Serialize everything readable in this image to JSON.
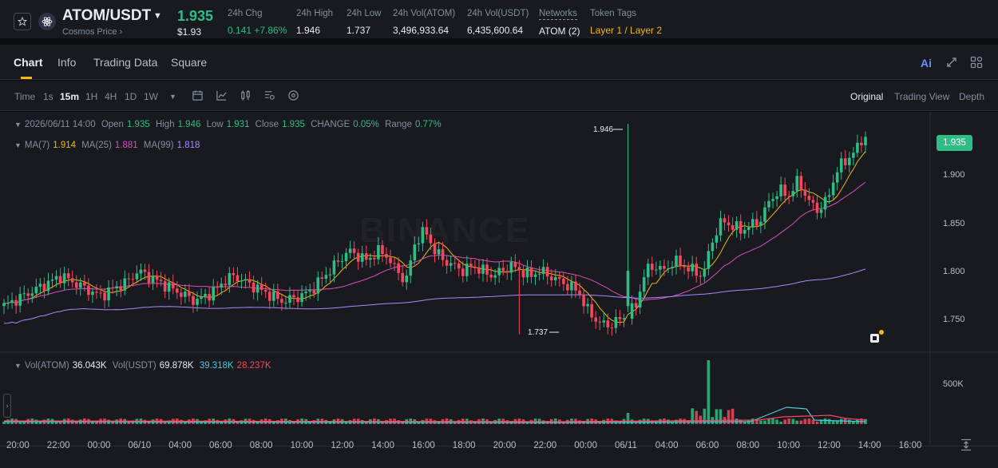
{
  "ticker": {
    "pair": "ATOM/USDT",
    "sub": "Cosmos Price",
    "price": "1.935",
    "price_usd": "$1.93",
    "stats": [
      {
        "label": "24h Chg",
        "value": "0.141 +7.86%",
        "color": "green"
      },
      {
        "label": "24h High",
        "value": "1.946"
      },
      {
        "label": "24h Low",
        "value": "1.737"
      },
      {
        "label": "24h Vol(ATOM)",
        "value": "3,496,933.64"
      },
      {
        "label": "24h Vol(USDT)",
        "value": "6,435,600.64"
      },
      {
        "label": "Networks",
        "value": "ATOM (2)"
      },
      {
        "label": "Token Tags",
        "value": "Layer 1 / Layer 2",
        "color": "yellow"
      }
    ]
  },
  "tabs": [
    "Chart",
    "Info",
    "Trading Data",
    "Square"
  ],
  "ai_label": "Ai",
  "toolbar": {
    "timeframes": [
      "Time",
      "1s",
      "15m",
      "1H",
      "4H",
      "1D",
      "1W"
    ],
    "active_timeframe": "15m",
    "views": [
      "Original",
      "Trading View",
      "Depth"
    ],
    "active_view": "Original"
  },
  "ohlc": {
    "date": "2026/06/11 14:00",
    "open_label": "Open",
    "open": "1.935",
    "high_label": "High",
    "high": "1.946",
    "low_label": "Low",
    "low": "1.931",
    "close_label": "Close",
    "close": "1.935",
    "change_label": "CHANGE",
    "change": "0.05%",
    "range_label": "Range",
    "range": "0.77%"
  },
  "ma": {
    "ma7_label": "MA(7)",
    "ma7": "1.914",
    "ma25_label": "MA(25)",
    "ma25": "1.881",
    "ma99_label": "MA(99)",
    "ma99": "1.818"
  },
  "volume": {
    "atom_label": "Vol(ATOM)",
    "atom": "36.043K",
    "usdt_label": "Vol(USDT)",
    "usdt": "69.878K",
    "ma1": "39.318K",
    "ma2": "28.237K"
  },
  "watermark": "BINANCE",
  "colors": {
    "up": "#2ebd85",
    "down": "#f6465d",
    "ma7": "#f0b90b",
    "ma25": "#d94fb9",
    "ma99": "#a989ff",
    "accent": "#f0b90b"
  },
  "chart_data": {
    "type": "candlestick",
    "price_axis_ticks": [
      "1.935",
      "1.900",
      "1.850",
      "1.800",
      "1.750"
    ],
    "volume_axis_ticks": [
      "500K"
    ],
    "time_ticks": [
      "20:00",
      "22:00",
      "00:00",
      "06/10",
      "04:00",
      "06:00",
      "08:00",
      "10:00",
      "12:00",
      "14:00",
      "16:00",
      "18:00",
      "20:00",
      "22:00",
      "00:00",
      "06/11",
      "04:00",
      "06:00",
      "08:00",
      "10:00",
      "12:00",
      "14:00",
      "16:00"
    ],
    "high_marker": "1.946",
    "low_marker": "1.737",
    "last_price": "1.935",
    "ylim": [
      1.72,
      1.95
    ],
    "close_path": [
      1.765,
      1.77,
      1.775,
      1.78,
      1.785,
      1.79,
      1.795,
      1.79,
      1.785,
      1.78,
      1.775,
      1.78,
      1.785,
      1.79,
      1.8,
      1.795,
      1.79,
      1.785,
      1.78,
      1.775,
      1.77,
      1.775,
      1.78,
      1.79,
      1.795,
      1.79,
      1.785,
      1.78,
      1.775,
      1.77,
      1.772,
      1.775,
      1.78,
      1.79,
      1.8,
      1.81,
      1.82,
      1.815,
      1.81,
      1.82,
      1.815,
      1.8,
      1.79,
      1.83,
      1.84,
      1.82,
      1.81,
      1.805,
      1.8,
      1.805,
      1.8,
      1.795,
      1.8,
      1.805,
      1.8,
      1.795,
      1.8,
      1.795,
      1.79,
      1.785,
      1.78,
      1.76,
      1.75,
      1.745,
      1.75,
      1.755,
      1.765,
      1.8,
      1.805,
      1.8,
      1.81,
      1.805,
      1.8,
      1.795,
      1.83,
      1.85,
      1.845,
      1.84,
      1.845,
      1.85,
      1.87,
      1.88,
      1.875,
      1.89,
      1.87,
      1.86,
      1.87,
      1.9,
      1.91,
      1.92,
      1.935
    ]
  }
}
